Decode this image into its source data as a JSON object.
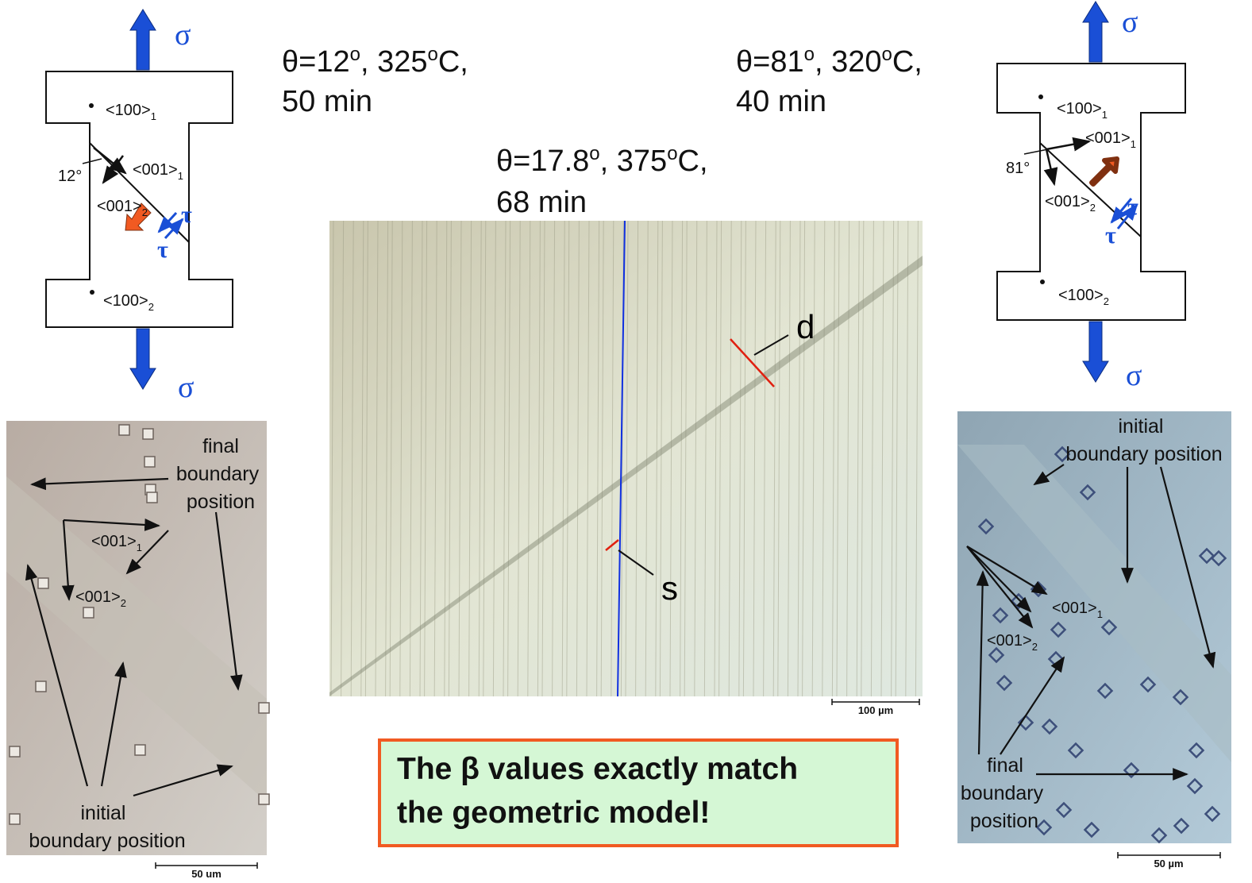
{
  "left_schematic": {
    "sigma_top": "σ",
    "sigma_bottom": "σ",
    "dir_100_1": {
      "text": "<100>",
      "sub": "1"
    },
    "dir_001_1": {
      "text": "<001>",
      "sub": "1"
    },
    "dir_001_2": {
      "text": "<001>",
      "sub": "2"
    },
    "dir_100_2": {
      "text": "<100>",
      "sub": "2"
    },
    "angle": "12°",
    "tau_1": "τ",
    "tau_2": "τ"
  },
  "right_schematic": {
    "sigma_top": "σ",
    "sigma_bottom": "σ",
    "dir_100_1": {
      "text": "<100>",
      "sub": "1"
    },
    "dir_001_1": {
      "text": "<001>",
      "sub": "1"
    },
    "dir_001_2": {
      "text": "<001>",
      "sub": "2"
    },
    "dir_100_2": {
      "text": "<100>",
      "sub": "2"
    },
    "angle": "81°",
    "tau_1": "τ",
    "tau_2": "τ"
  },
  "conditions": {
    "left": {
      "line1": [
        "θ=12",
        "o",
        ", 325",
        "o",
        "C,"
      ],
      "line2": "50 min"
    },
    "center": {
      "line1": [
        "θ=17.8",
        "o",
        ", 375",
        "o",
        "C,"
      ],
      "line2": "68 min"
    },
    "right": {
      "line1": [
        "θ=81",
        "o",
        ", 320",
        "o",
        "C,"
      ],
      "line2": "40 min"
    }
  },
  "center_micrograph": {
    "label_d": "d",
    "label_s": "s",
    "scale": "100 µm"
  },
  "left_micrograph": {
    "final": [
      "final",
      "boundary",
      "position"
    ],
    "dir_001_1": {
      "text": "<001>",
      "sub": "1"
    },
    "dir_001_2": {
      "text": "<001>",
      "sub": "2"
    },
    "initial": [
      "initial",
      "boundary position"
    ],
    "scale": "50 um"
  },
  "right_micrograph": {
    "initial": [
      "initial",
      "boundary position"
    ],
    "dir_001_1": {
      "text": "<001>",
      "sub": "1"
    },
    "dir_001_2": {
      "text": "<001>",
      "sub": "2"
    },
    "final": [
      "final",
      "boundary",
      "position"
    ],
    "scale": "50 µm"
  },
  "callout": [
    "The β values exactly match",
    "the geometric model!"
  ]
}
